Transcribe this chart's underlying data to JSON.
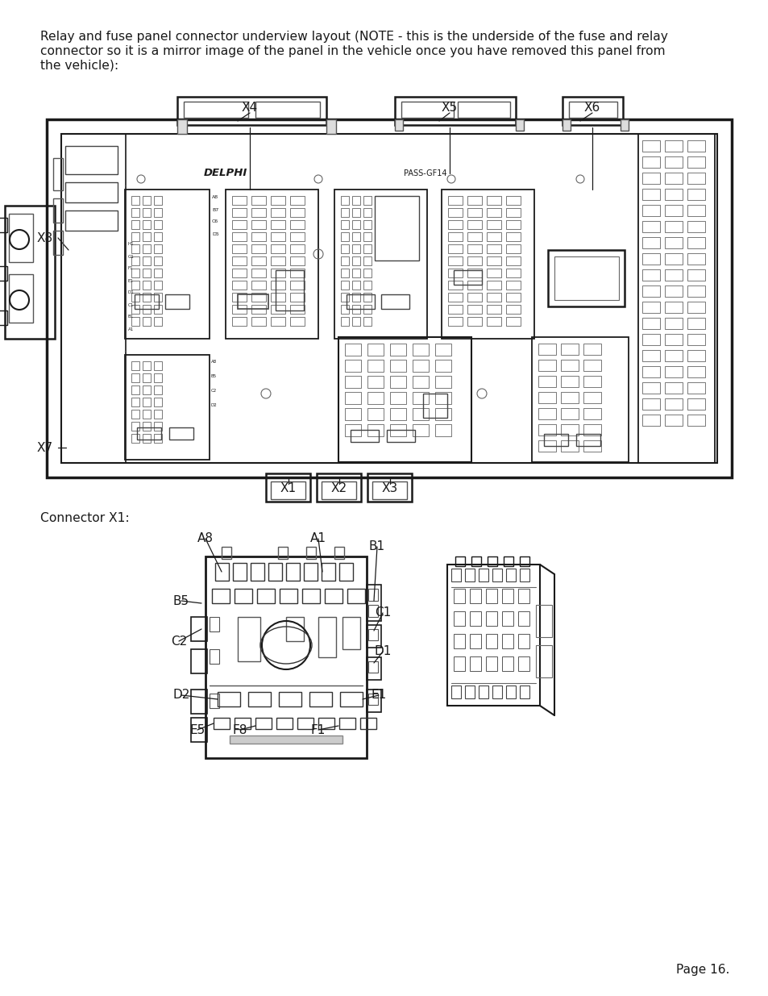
{
  "bg_color": "#ffffff",
  "text_color": "#1a1a1a",
  "page_text_line1": "Relay and fuse panel connector underview layout (NOTE - this is the underside of the fuse and relay",
  "page_text_line2": "connector so it is a mirror image of the panel in the vehicle once you have removed this panel from",
  "page_text_line3": "the vehicle):",
  "connector_label": "Connector X1:",
  "page_number": "Page 16.",
  "font_size_body": 11.2,
  "font_size_label": 11.2,
  "font_size_page": 11.0,
  "line_color": "#1a1a1a"
}
